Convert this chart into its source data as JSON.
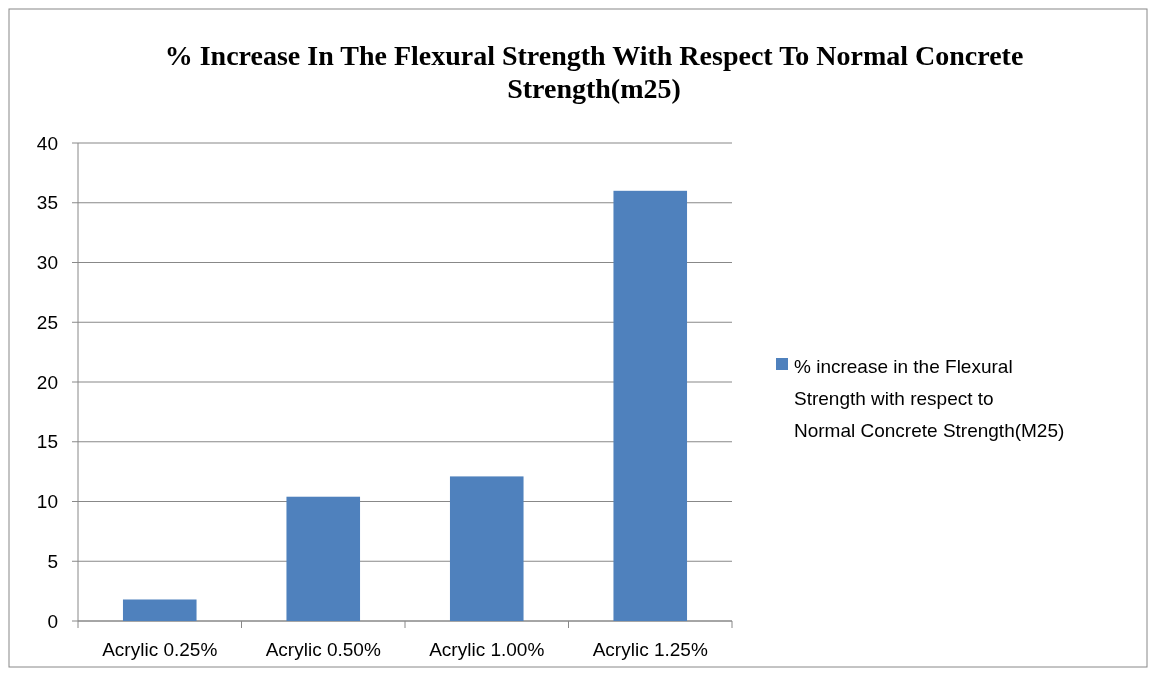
{
  "chart_data": {
    "type": "bar",
    "title": "% Increase In The Flexural Strength With Respect To Normal Concrete Strength(m25)",
    "categories": [
      "Acrylic 0.25%",
      "Acrylic 0.50%",
      "Acrylic 1.00%",
      "Acrylic 1.25%"
    ],
    "series": [
      {
        "name": "% increase in the Flexural Strength with respect to Normal Concrete Strength(M25)",
        "color": "#4f81bd",
        "values": [
          1.8,
          10.4,
          12.1,
          36
        ]
      }
    ],
    "ylim": [
      0,
      40
    ],
    "yticks": [
      0,
      5,
      10,
      15,
      20,
      25,
      30,
      35,
      40
    ],
    "grid": "y",
    "legend": "right"
  }
}
